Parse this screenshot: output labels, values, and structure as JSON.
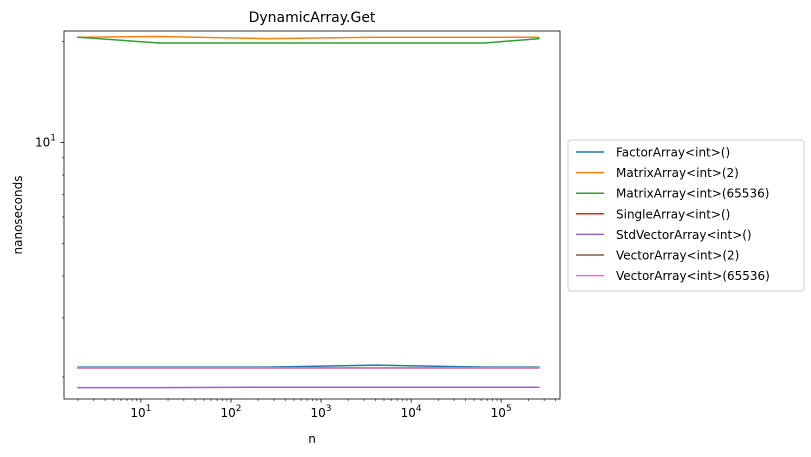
{
  "chart_data": {
    "type": "line",
    "title": "DynamicArray.Get",
    "xlabel": "n",
    "ylabel": "nanoseconds",
    "xscale": "log",
    "yscale": "log",
    "xlim": [
      1.4,
      450000
    ],
    "ylim": [
      1.72,
      21.5
    ],
    "xticks": [
      {
        "value": 10,
        "base": "10",
        "exp": "1"
      },
      {
        "value": 100,
        "base": "10",
        "exp": "2"
      },
      {
        "value": 1000,
        "base": "10",
        "exp": "3"
      },
      {
        "value": 10000,
        "base": "10",
        "exp": "4"
      },
      {
        "value": 100000,
        "base": "10",
        "exp": "5"
      }
    ],
    "yticks": [
      {
        "value": 10,
        "base": "10",
        "exp": "1"
      }
    ],
    "grid": false,
    "legend_position": "center-right outside",
    "x": [
      2,
      16,
      256,
      4096,
      65536,
      262144
    ],
    "series": [
      {
        "name": "FactorArray<int>()",
        "color": "#1f77b4",
        "values": [
          2.14,
          2.14,
          2.14,
          2.17,
          2.14,
          2.14
        ]
      },
      {
        "name": "MatrixArray<int>(2)",
        "color": "#ff7f0e",
        "values": [
          20.6,
          20.7,
          20.4,
          20.6,
          20.6,
          20.6
        ]
      },
      {
        "name": "MatrixArray<int>(65536)",
        "color": "#2ca02c",
        "values": [
          20.6,
          19.8,
          19.8,
          19.8,
          19.8,
          20.4
        ]
      },
      {
        "name": "SingleArray<int>()",
        "color": "#d62728",
        "values": [
          2.13,
          2.13,
          2.13,
          2.13,
          2.13,
          2.13
        ]
      },
      {
        "name": "StdVectorArray<int>()",
        "color": "#9467bd",
        "values": [
          1.86,
          1.86,
          1.865,
          1.865,
          1.865,
          1.865
        ]
      },
      {
        "name": "VectorArray<int>(2)",
        "color": "#8c564b",
        "values": [
          2.13,
          2.13,
          2.13,
          2.13,
          2.13,
          2.13
        ]
      },
      {
        "name": "VectorArray<int>(65536)",
        "color": "#e377c2",
        "values": [
          2.13,
          2.13,
          2.13,
          2.13,
          2.13,
          2.13
        ]
      }
    ]
  }
}
